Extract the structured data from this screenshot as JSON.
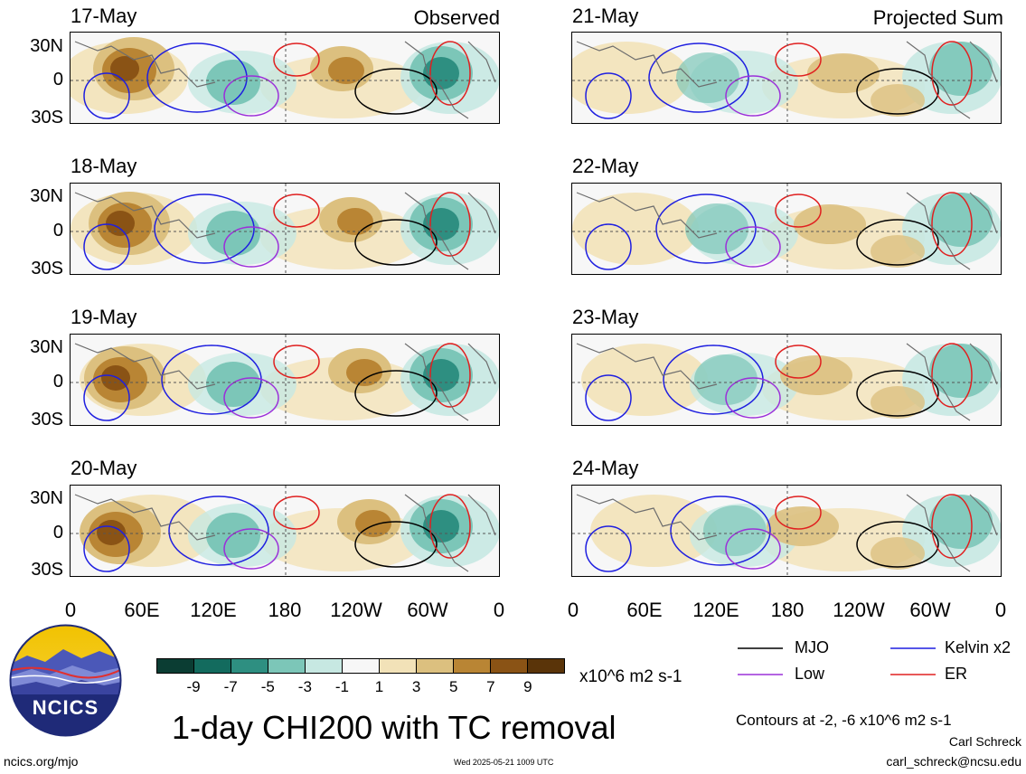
{
  "panels_left": [
    {
      "date": "17-May",
      "tag": "Observed"
    },
    {
      "date": "18-May",
      "tag": ""
    },
    {
      "date": "19-May",
      "tag": ""
    },
    {
      "date": "20-May",
      "tag": ""
    }
  ],
  "panels_right": [
    {
      "date": "21-May",
      "tag": "Projected Sum"
    },
    {
      "date": "22-May",
      "tag": ""
    },
    {
      "date": "23-May",
      "tag": ""
    },
    {
      "date": "24-May",
      "tag": ""
    }
  ],
  "lat_labels": [
    "30N",
    "0",
    "30S"
  ],
  "lon_labels": [
    "0",
    "60E",
    "120E",
    "180",
    "120W",
    "60W",
    "0"
  ],
  "colorbar": {
    "labels": [
      "-9",
      "-7",
      "-5",
      "-3",
      "-1",
      "1",
      "3",
      "5",
      "7",
      "9"
    ],
    "colors": [
      "#0b3d33",
      "#136b5e",
      "#2e8f81",
      "#7cc6b8",
      "#c7e8e2",
      "#f7f7f7",
      "#f2e2b8",
      "#dcc07f",
      "#b98534",
      "#8a5315",
      "#5a3409"
    ],
    "units": "x10^6 m2 s-1"
  },
  "legend": {
    "items": [
      {
        "label": "MJO",
        "color": "#000000"
      },
      {
        "label": "Kelvin x2",
        "color": "#1f1fe0"
      },
      {
        "label": "Low",
        "color": "#9b30d9"
      },
      {
        "label": "ER",
        "color": "#e02020"
      }
    ]
  },
  "title": "1-day CHI200 with TC removal",
  "contours_note": "Contours at -2, -6 x10^6 m2 s-1",
  "author": "Carl Schreck",
  "email": "carl_schreck@ncsu.edu",
  "url": "ncics.org/mjo",
  "timestamp": "Wed 2025-05-21 1009 UTC",
  "logo_text": "NCICS"
}
